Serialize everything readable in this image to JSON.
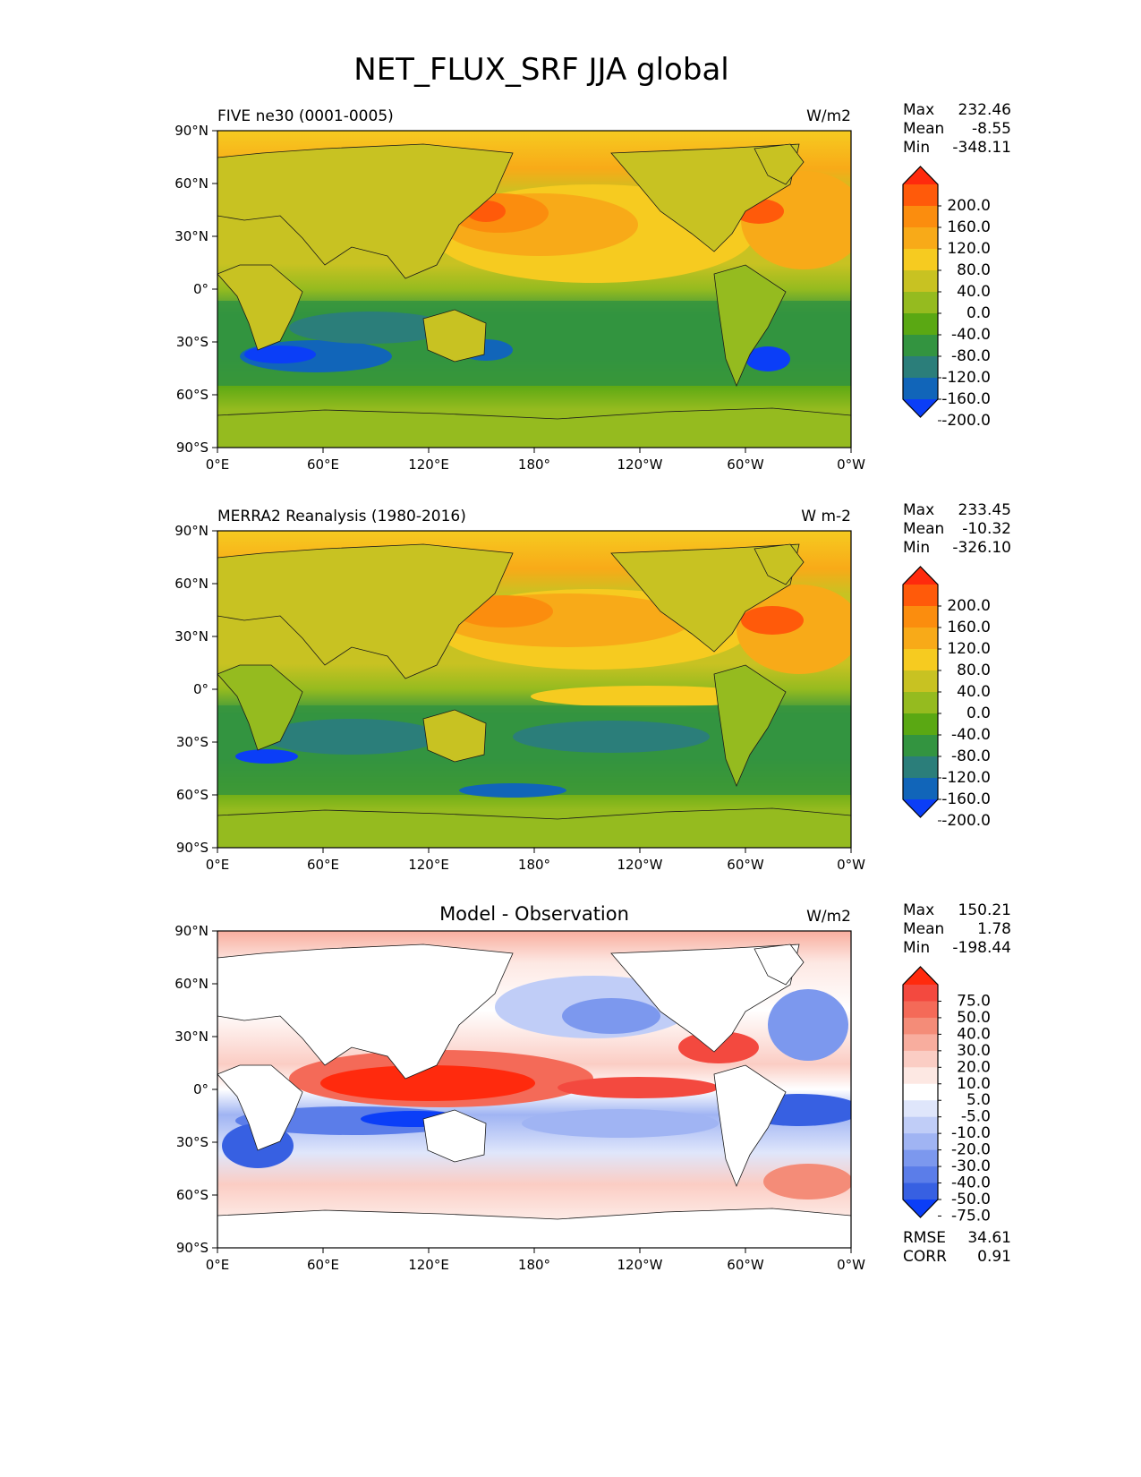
{
  "figure": {
    "title": "NET_FLUX_SRF JJA global"
  },
  "axes": {
    "lat_ticks": [
      "90°N",
      "60°N",
      "30°N",
      "0°",
      "30°S",
      "60°S",
      "90°S"
    ],
    "lon_ticks": [
      "0°E",
      "60°E",
      "120°E",
      "180°",
      "120°W",
      "60°W",
      "0°W"
    ]
  },
  "chart_data": [
    {
      "type": "heatmap",
      "title_left": "FIVE ne30 (0001-0005)",
      "title_center": "",
      "units": "W/m2",
      "stats": [
        {
          "label": "Max",
          "value": "232.46"
        },
        {
          "label": "Mean",
          "value": "-8.55"
        },
        {
          "label": "Min",
          "value": "-348.11"
        }
      ],
      "colorbar": {
        "levels": [
          "200.0",
          "160.0",
          "120.0",
          "80.0",
          "40.0",
          "0.0",
          "-40.0",
          "-80.0",
          "-120.0",
          "-160.0",
          "-200.0"
        ],
        "colors": [
          "#ff2a0d",
          "#ff5a0a",
          "#fb8d0e",
          "#f8aa18",
          "#f6cb20",
          "#c8c222",
          "#95bb1f",
          "#5aa813",
          "#339440",
          "#2b7e7a",
          "#1165b9",
          "#0b3ef7"
        ]
      },
      "footer": []
    },
    {
      "type": "heatmap",
      "title_left": "MERRA2 Reanalysis (1980-2016)",
      "title_center": "",
      "units": "W m-2",
      "stats": [
        {
          "label": "Max",
          "value": "233.45"
        },
        {
          "label": "Mean",
          "value": "-10.32"
        },
        {
          "label": "Min",
          "value": "-326.10"
        }
      ],
      "colorbar": {
        "levels": [
          "200.0",
          "160.0",
          "120.0",
          "80.0",
          "40.0",
          "0.0",
          "-40.0",
          "-80.0",
          "-120.0",
          "-160.0",
          "-200.0"
        ],
        "colors": [
          "#ff2a0d",
          "#ff5a0a",
          "#fb8d0e",
          "#f8aa18",
          "#f6cb20",
          "#c8c222",
          "#95bb1f",
          "#5aa813",
          "#339440",
          "#2b7e7a",
          "#1165b9",
          "#0b3ef7"
        ]
      },
      "footer": []
    },
    {
      "type": "heatmap",
      "title_left": "",
      "title_center": "Model - Observation",
      "units": "W/m2",
      "stats": [
        {
          "label": "Max",
          "value": "150.21"
        },
        {
          "label": "Mean",
          "value": "1.78"
        },
        {
          "label": "Min",
          "value": "-198.44"
        }
      ],
      "colorbar": {
        "levels": [
          "75.0",
          "50.0",
          "40.0",
          "30.0",
          "20.0",
          "10.0",
          "5.0",
          "-5.0",
          "-10.0",
          "-20.0",
          "-30.0",
          "-40.0",
          "-50.0",
          "-75.0"
        ],
        "colors": [
          "#ff2a0d",
          "#f3493f",
          "#f46a58",
          "#f48c78",
          "#f8ad9e",
          "#fbcdc4",
          "#fde8e3",
          "#ffffff",
          "#dfe6fb",
          "#c0cdf7",
          "#a0b4f3",
          "#7c98ee",
          "#5b7de9",
          "#3760e2",
          "#0b3ef7"
        ]
      },
      "footer": [
        {
          "label": "RMSE",
          "value": "34.61"
        },
        {
          "label": "CORR",
          "value": "0.91"
        }
      ]
    }
  ]
}
